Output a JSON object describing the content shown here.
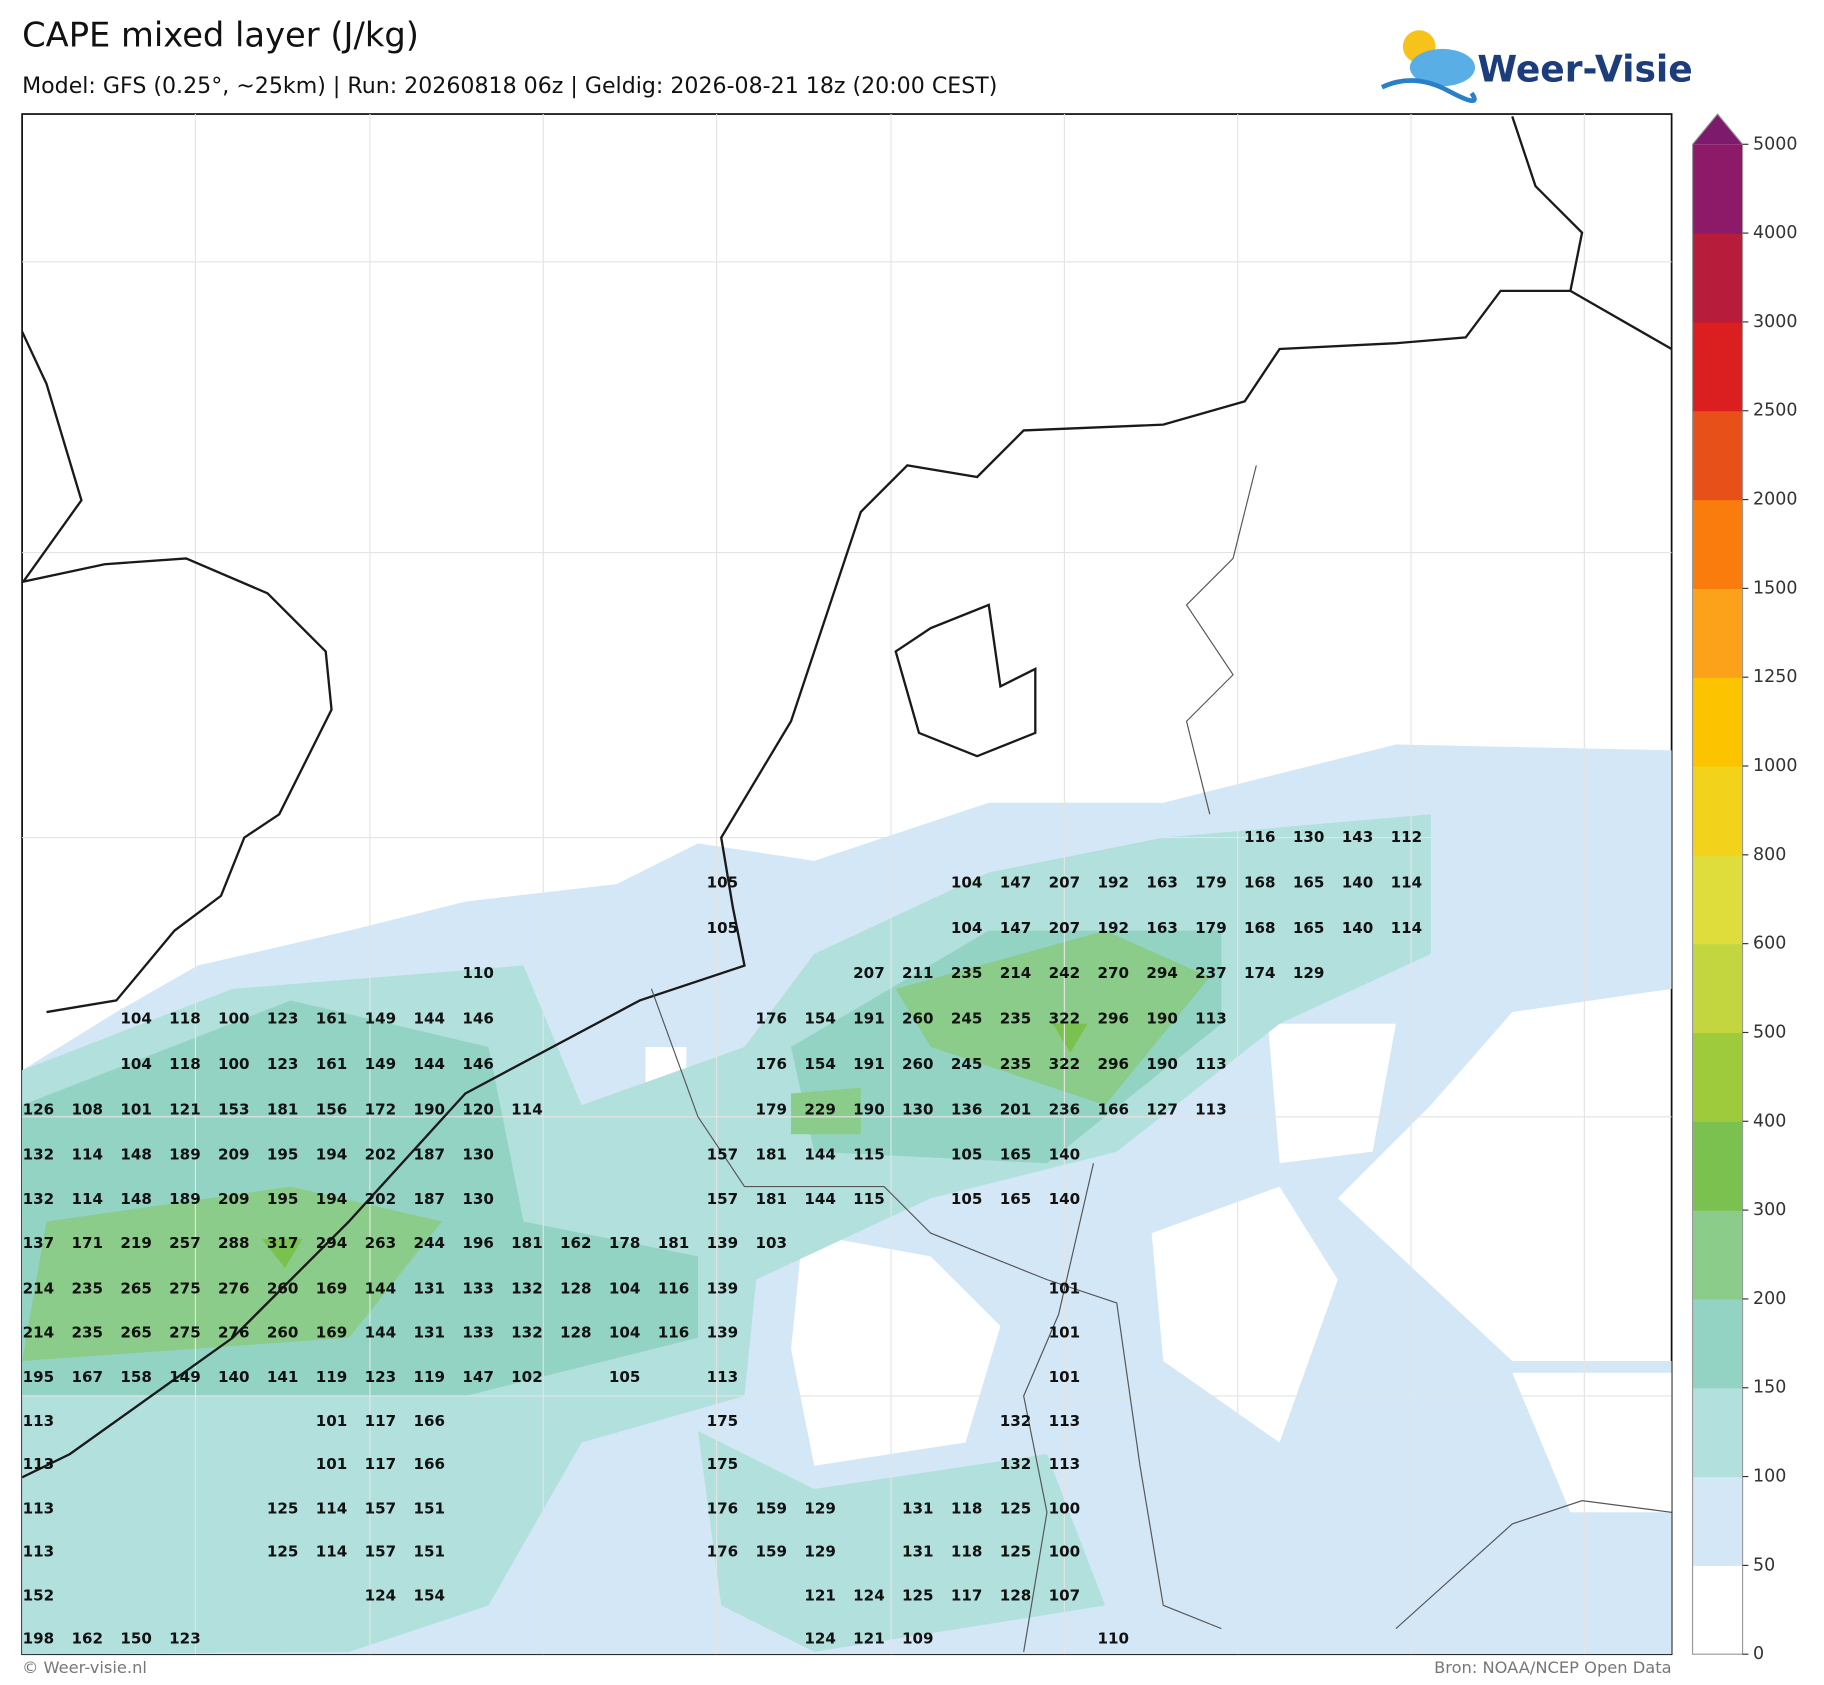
{
  "header": {
    "title": "CAPE mixed layer (J/kg)",
    "subtitle": "Model: GFS (0.25°, ~25km)  |  Run: 20260818 06z  |  Geldig: 2026-08-21 18z (20:00 CEST)",
    "logo": "Weer-Visie"
  },
  "map": {
    "grid_values": [
      [
        null,
        null,
        null,
        null,
        null,
        null,
        null,
        null,
        null,
        null,
        null,
        null,
        null,
        null,
        null,
        null,
        null,
        null,
        null,
        null,
        null,
        null,
        null,
        null,
        null,
        116,
        130,
        143,
        112
      ],
      [
        null,
        null,
        null,
        null,
        null,
        null,
        null,
        null,
        null,
        null,
        null,
        null,
        null,
        null,
        105,
        null,
        null,
        null,
        null,
        104,
        147,
        207,
        192,
        163,
        179,
        168,
        165,
        140,
        114
      ],
      [
        null,
        null,
        null,
        null,
        null,
        null,
        null,
        null,
        null,
        null,
        null,
        null,
        null,
        null,
        105,
        null,
        null,
        null,
        null,
        104,
        147,
        207,
        192,
        163,
        179,
        168,
        165,
        140,
        114
      ],
      [
        null,
        null,
        null,
        null,
        null,
        null,
        null,
        null,
        null,
        110,
        null,
        null,
        null,
        null,
        null,
        null,
        null,
        207,
        211,
        235,
        214,
        242,
        270,
        294,
        237,
        174,
        129,
        null,
        null
      ],
      [
        null,
        null,
        104,
        118,
        100,
        123,
        161,
        149,
        144,
        146,
        null,
        null,
        null,
        null,
        null,
        176,
        154,
        191,
        260,
        245,
        235,
        322,
        296,
        190,
        113,
        null,
        null,
        null,
        null
      ],
      [
        null,
        null,
        104,
        118,
        100,
        123,
        161,
        149,
        144,
        146,
        null,
        null,
        null,
        null,
        null,
        176,
        154,
        191,
        260,
        245,
        235,
        322,
        296,
        190,
        113,
        null,
        null,
        null,
        null
      ],
      [
        126,
        108,
        101,
        121,
        153,
        181,
        156,
        172,
        190,
        120,
        114,
        null,
        null,
        null,
        null,
        179,
        229,
        190,
        130,
        136,
        201,
        236,
        166,
        127,
        113,
        null,
        null,
        null,
        null
      ],
      [
        132,
        114,
        148,
        189,
        209,
        195,
        194,
        202,
        187,
        130,
        null,
        null,
        null,
        null,
        157,
        181,
        144,
        115,
        null,
        105,
        165,
        140,
        null,
        null,
        null,
        null,
        null,
        null,
        null
      ],
      [
        132,
        114,
        148,
        189,
        209,
        195,
        194,
        202,
        187,
        130,
        null,
        null,
        null,
        null,
        157,
        181,
        144,
        115,
        null,
        105,
        165,
        140,
        null,
        null,
        null,
        null,
        null,
        null,
        null
      ],
      [
        137,
        171,
        219,
        257,
        288,
        317,
        294,
        263,
        244,
        196,
        181,
        162,
        178,
        181,
        139,
        103,
        null,
        null,
        null,
        null,
        null,
        null,
        null,
        null,
        null,
        null,
        null,
        null,
        null
      ],
      [
        214,
        235,
        265,
        275,
        276,
        260,
        169,
        144,
        131,
        133,
        132,
        128,
        104,
        116,
        139,
        null,
        null,
        null,
        null,
        null,
        null,
        101,
        null,
        null,
        null,
        null,
        null,
        null,
        null
      ],
      [
        214,
        235,
        265,
        275,
        276,
        260,
        169,
        144,
        131,
        133,
        132,
        128,
        104,
        116,
        139,
        null,
        null,
        null,
        null,
        null,
        null,
        101,
        null,
        null,
        null,
        null,
        null,
        null,
        null
      ],
      [
        195,
        167,
        158,
        149,
        140,
        141,
        119,
        123,
        119,
        147,
        102,
        null,
        105,
        null,
        113,
        null,
        null,
        null,
        null,
        null,
        null,
        101,
        null,
        null,
        null,
        null,
        null,
        null,
        null
      ],
      [
        113,
        null,
        null,
        null,
        null,
        null,
        101,
        117,
        166,
        null,
        null,
        null,
        null,
        null,
        175,
        null,
        null,
        null,
        null,
        null,
        132,
        113,
        null,
        null,
        null,
        null,
        null,
        null,
        null
      ],
      [
        113,
        null,
        null,
        null,
        null,
        null,
        101,
        117,
        166,
        null,
        null,
        null,
        null,
        null,
        175,
        null,
        null,
        null,
        null,
        null,
        132,
        113,
        null,
        null,
        null,
        null,
        null,
        null,
        null
      ],
      [
        113,
        null,
        null,
        null,
        null,
        125,
        114,
        157,
        151,
        null,
        null,
        null,
        null,
        null,
        176,
        159,
        129,
        null,
        131,
        118,
        125,
        100,
        null,
        null,
        null,
        null,
        null,
        null,
        null
      ],
      [
        113,
        null,
        null,
        null,
        null,
        125,
        114,
        157,
        151,
        null,
        null,
        null,
        null,
        null,
        176,
        159,
        129,
        null,
        131,
        118,
        125,
        100,
        null,
        null,
        null,
        null,
        null,
        null,
        null
      ],
      [
        152,
        null,
        null,
        null,
        null,
        null,
        null,
        124,
        154,
        null,
        null,
        null,
        null,
        null,
        null,
        null,
        121,
        124,
        125,
        117,
        128,
        107,
        null,
        null,
        null,
        null,
        null,
        null,
        null
      ],
      [
        198,
        162,
        150,
        123,
        null,
        null,
        null,
        null,
        null,
        null,
        null,
        null,
        null,
        null,
        null,
        null,
        124,
        121,
        109,
        null,
        null,
        null,
        110,
        null,
        null,
        null,
        null,
        null,
        null
      ]
    ]
  },
  "colorbar": {
    "levels": [
      0,
      50,
      100,
      150,
      200,
      300,
      400,
      500,
      600,
      800,
      1000,
      1250,
      1500,
      2000,
      2500,
      3000,
      4000,
      5000
    ],
    "colors": [
      "#ffffff",
      "#d3e7f6",
      "#b2e0dd",
      "#93d3c4",
      "#8ccc8a",
      "#7bc14f",
      "#9dcb3c",
      "#c3d640",
      "#dedd3b",
      "#f3d21b",
      "#fbc300",
      "#fca11a",
      "#f97c0c",
      "#e8501a",
      "#db1f20",
      "#b71c3b",
      "#8c1a68"
    ],
    "extend_color": "#7d1a6b"
  },
  "footer": {
    "copyright": "© Weer-visie.nl",
    "source": "Bron: NOAA/NCEP Open Data"
  }
}
